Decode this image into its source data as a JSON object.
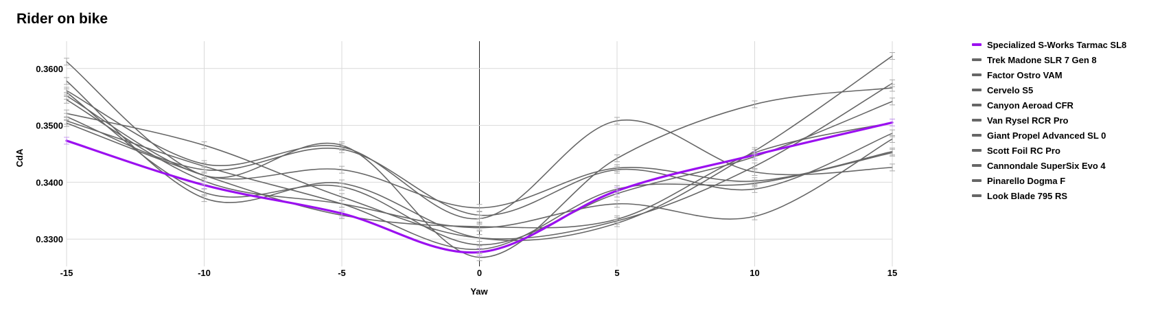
{
  "chart_data": {
    "type": "line",
    "title": "Rider on bike",
    "xlabel": "Yaw",
    "ylabel": "CdA",
    "x": [
      -15,
      -10,
      -5,
      0,
      5,
      10,
      15
    ],
    "xlim": [
      -15,
      15
    ],
    "ylim": [
      0.3252,
      0.3648
    ],
    "x_ticks": [
      "-15",
      "-10",
      "-5",
      "0",
      "5",
      "10",
      "15"
    ],
    "y_ticks": [
      "0.3300",
      "0.3400",
      "0.3500",
      "0.3600"
    ],
    "grid": true,
    "legend_position": "right",
    "series": [
      {
        "name": "Specialized S-Works Tarmac SL8",
        "color": "#9b10f0",
        "highlight": true,
        "values": [
          0.3473,
          0.3395,
          0.3345,
          0.3277,
          0.3385,
          0.3448,
          0.3505
        ]
      },
      {
        "name": "Trek Madone SLR 7 Gen 8",
        "color": "#666666",
        "values": [
          0.3612,
          0.3412,
          0.3465,
          0.3268,
          0.3442,
          0.3537,
          0.3566
        ]
      },
      {
        "name": "Factor Ostro VAM",
        "color": "#666666",
        "values": [
          0.3578,
          0.3372,
          0.3398,
          0.3302,
          0.3328,
          0.3455,
          0.3622
        ]
      },
      {
        "name": "Cervelo S5",
        "color": "#666666",
        "values": [
          0.3561,
          0.3432,
          0.3462,
          0.3336,
          0.3508,
          0.3418,
          0.3426
        ]
      },
      {
        "name": "Canyon Aeroad CFR",
        "color": "#666666",
        "values": [
          0.3552,
          0.3412,
          0.3422,
          0.3355,
          0.3425,
          0.3402,
          0.3454
        ]
      },
      {
        "name": "Van Rysel RCR Pro",
        "color": "#666666",
        "values": [
          0.3545,
          0.3402,
          0.3362,
          0.332,
          0.3362,
          0.334,
          0.3476
        ]
      },
      {
        "name": "Giant Propel Advanced SL 0",
        "color": "#666666",
        "values": [
          0.3521,
          0.3465,
          0.3374,
          0.3302,
          0.3332,
          0.3428,
          0.3574
        ]
      },
      {
        "name": "Scott Foil RC Pro",
        "color": "#666666",
        "values": [
          0.3515,
          0.3422,
          0.3458,
          0.3342,
          0.3422,
          0.3388,
          0.3486
        ]
      },
      {
        "name": "Cannondale SuperSix Evo 4",
        "color": "#666666",
        "values": [
          0.3508,
          0.3428,
          0.3362,
          0.3282,
          0.3388,
          0.3398,
          0.3452
        ]
      },
      {
        "name": "Pinarello Dogma F",
        "color": "#666666",
        "values": [
          0.3558,
          0.3382,
          0.3392,
          0.329,
          0.338,
          0.3445,
          0.3542
        ]
      },
      {
        "name": "Look Blade 795 RS",
        "color": "#666666",
        "values": [
          0.3504,
          0.3412,
          0.3342,
          0.3322,
          0.3335,
          0.3452,
          0.3505
        ]
      }
    ]
  }
}
